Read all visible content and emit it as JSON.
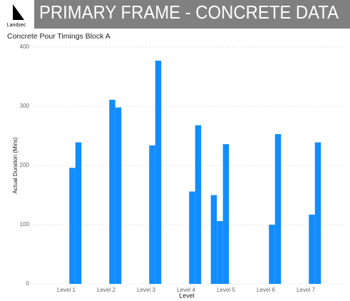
{
  "header": {
    "title": "PRIMARY FRAME - CONCRETE DATA",
    "logo": "Landsec"
  },
  "chart_data": {
    "type": "bar",
    "title": "Concrete Pour Timings Block A",
    "x_label": "Level",
    "y_label": "Actual Duration (Mins)",
    "categories": [
      "Level 1",
      "Level 2",
      "Level 3",
      "Level 4",
      "Level 5",
      "Level 6",
      "Level 7"
    ],
    "series": [
      {
        "color": "#118dff",
        "values": [
          null,
          null,
          null,
          null,
          150,
          null,
          null
        ]
      },
      {
        "color": "#118dff",
        "values": [
          null,
          null,
          null,
          null,
          106,
          null,
          null
        ]
      },
      {
        "color": "#118dff",
        "values": [
          null,
          null,
          null,
          null,
          236,
          null,
          null
        ]
      },
      {
        "color": "#118dff",
        "values": [
          196,
          311,
          234,
          156,
          null,
          100,
          117
        ]
      },
      {
        "color": "#118dff",
        "values": [
          239,
          298,
          377,
          268,
          null,
          253,
          239
        ]
      }
    ],
    "ylim": [
      0,
      400
    ],
    "yticks": [
      0,
      100,
      200,
      300,
      400
    ],
    "grid": true
  }
}
